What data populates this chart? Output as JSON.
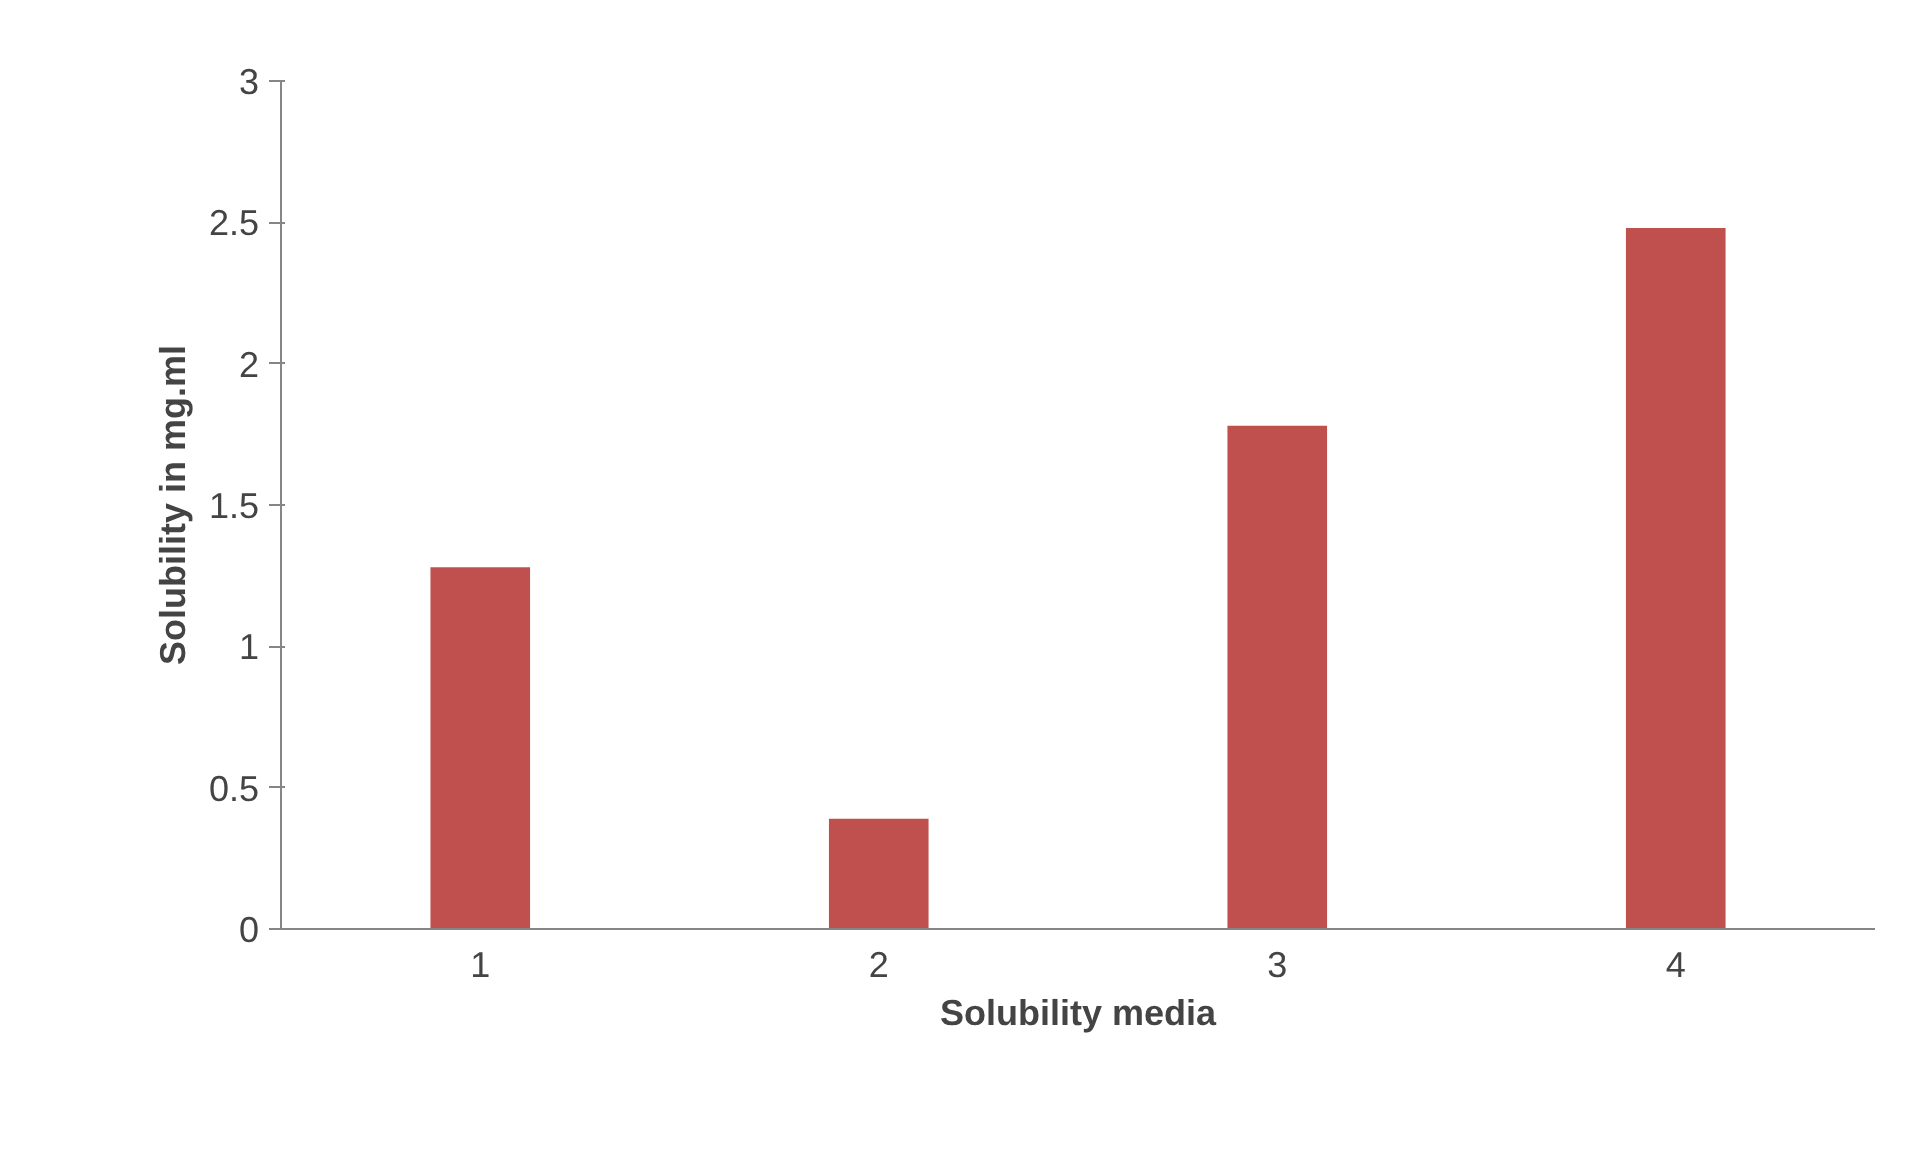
{
  "chart_data": {
    "type": "bar",
    "xlabel": "Solubility media",
    "ylabel": "Solubility in mg.ml",
    "categories": [
      "1",
      "2",
      "3",
      "4"
    ],
    "series": [
      {
        "color": "#c0504d",
        "values": [
          1.28,
          0.39,
          1.78,
          2.48
        ]
      }
    ],
    "ylim": [
      0,
      3
    ],
    "yticks": [
      0,
      0.5,
      1,
      1.5,
      2,
      2.5,
      3
    ],
    "grid": false
  }
}
